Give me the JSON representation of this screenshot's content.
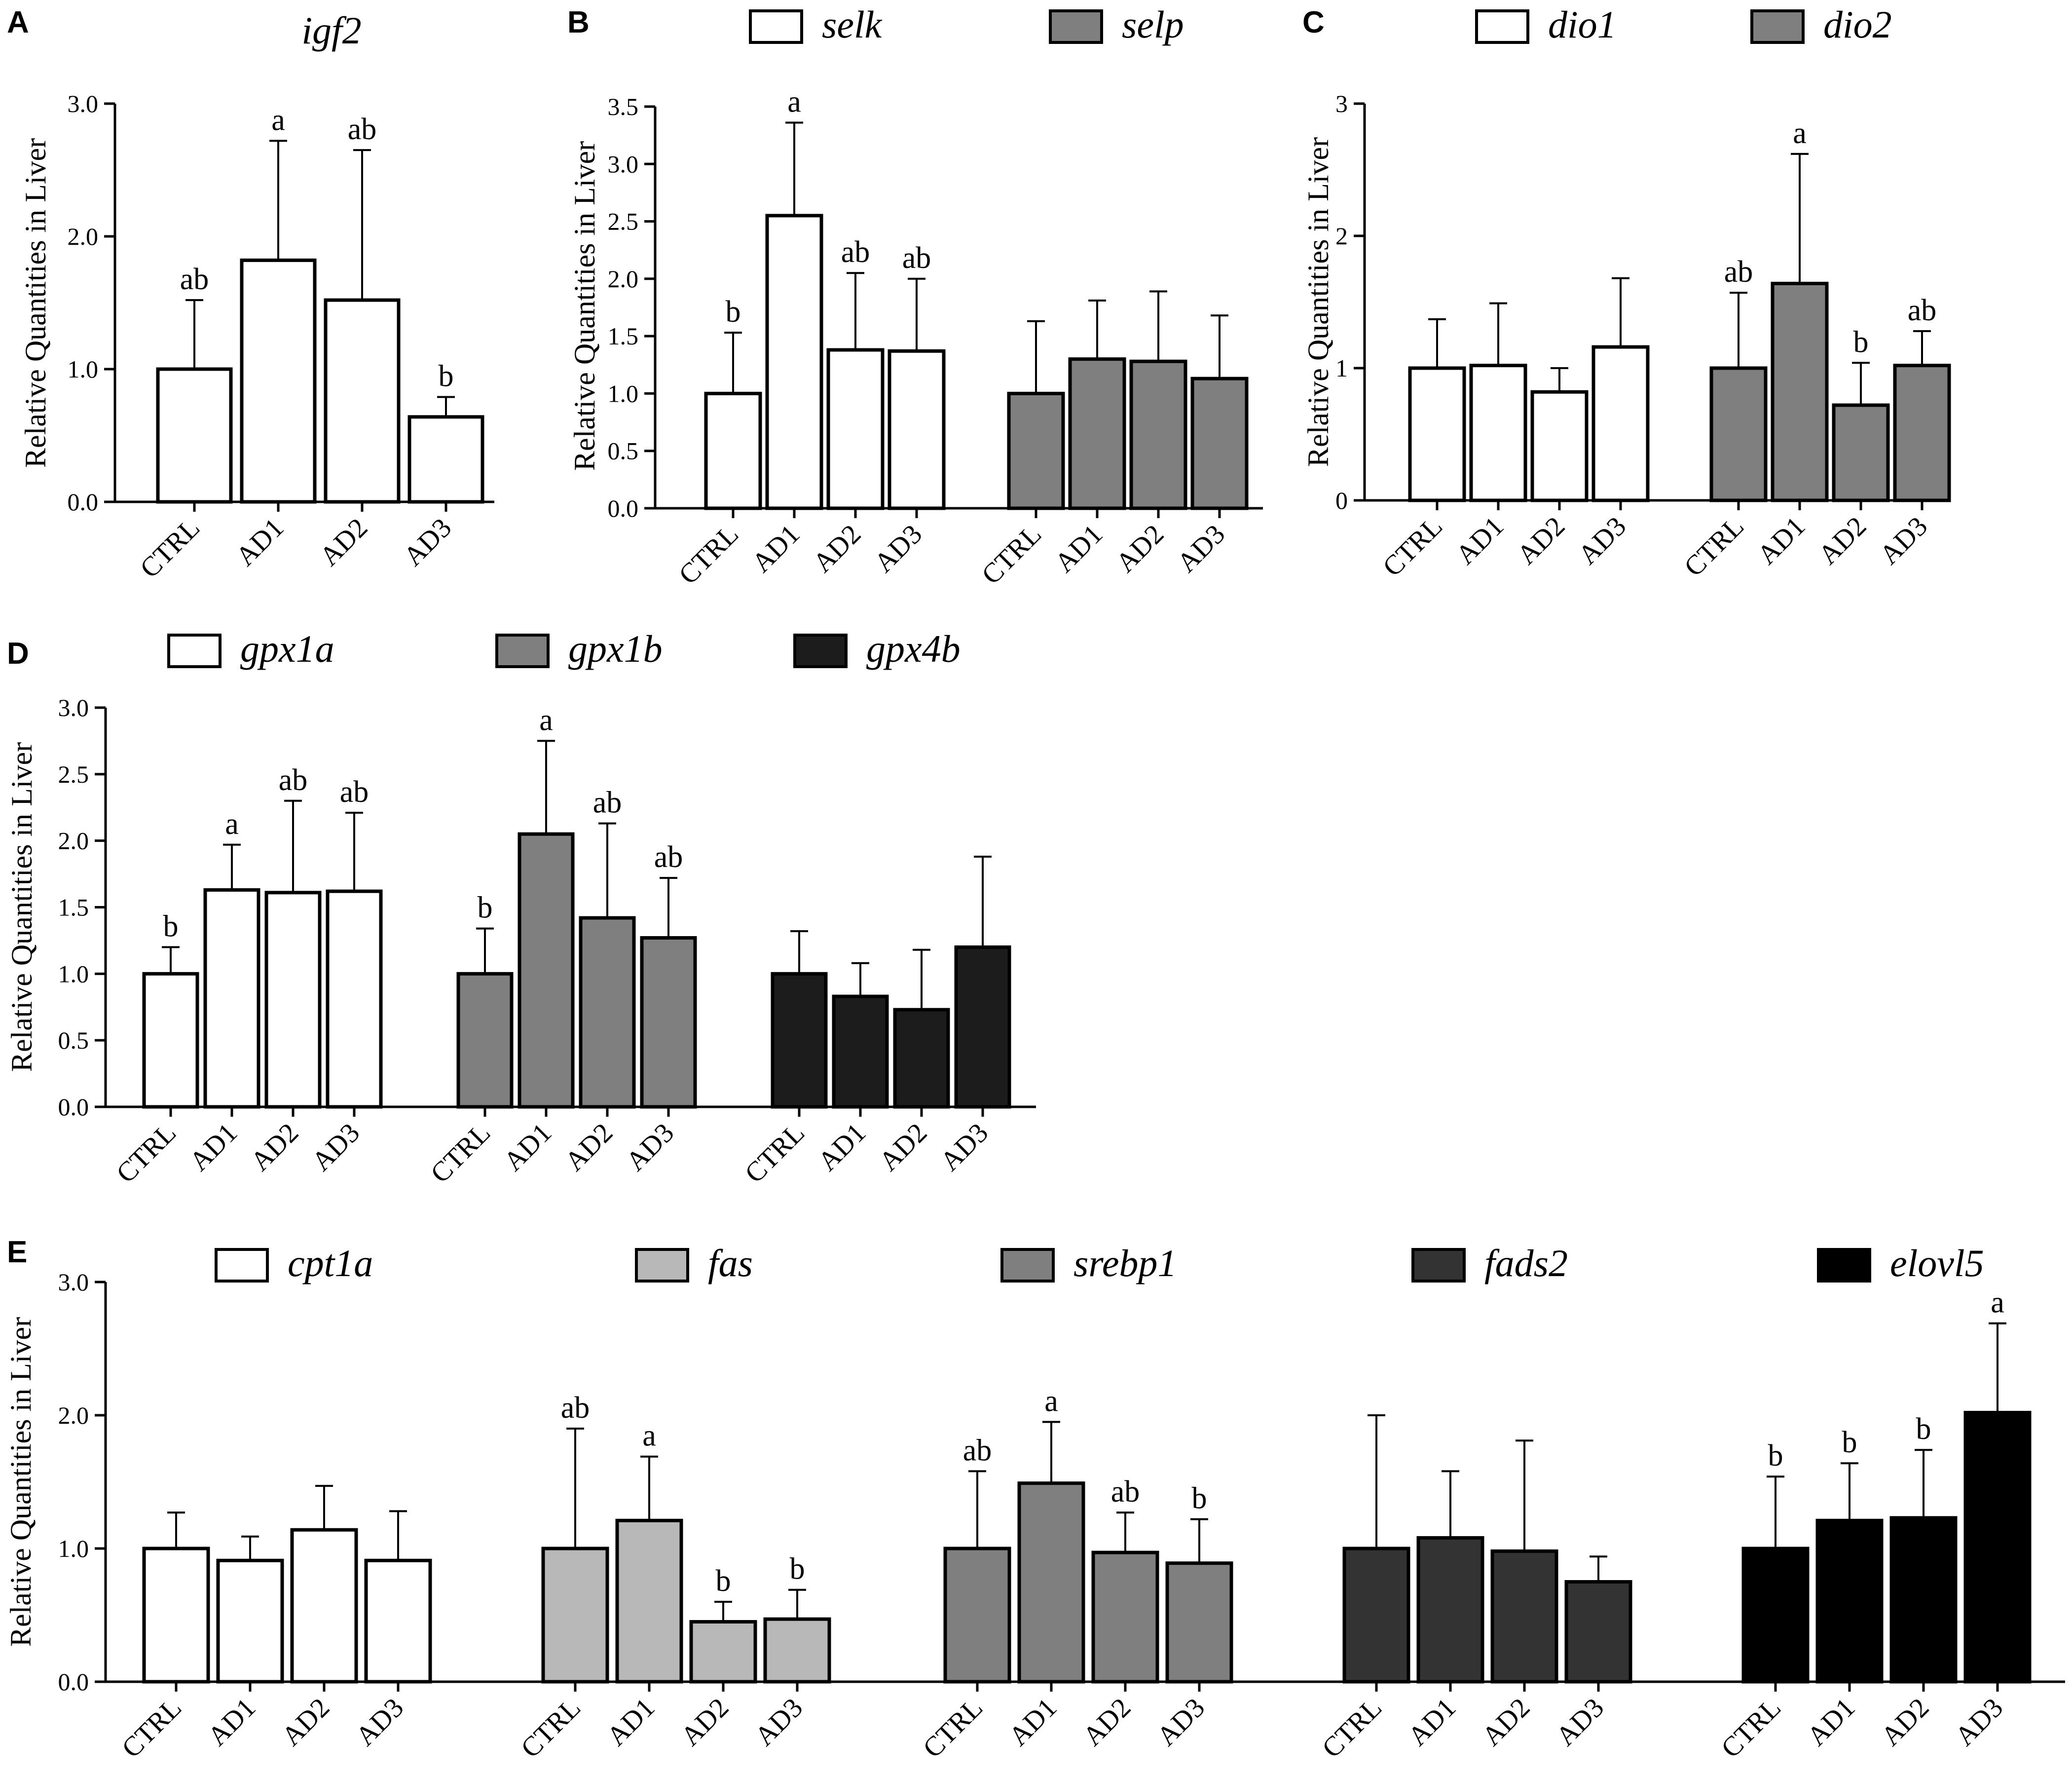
{
  "figure": {
    "y_axis_label": "Relative Quantities in Liver"
  },
  "colors": {
    "white": "#ffffff",
    "light_gray": "#b8b8b8",
    "mid_gray": "#7f7f7f",
    "dark_gray": "#333333",
    "near_black": "#1c1c1c",
    "black": "#000000"
  },
  "chart_data": [
    {
      "panel": "A",
      "type": "bar",
      "title": "igf2",
      "ylabel": "Relative Quantities in Liver",
      "ylim": [
        0,
        3
      ],
      "yticks": [
        "0.0",
        "1.0",
        "2.0",
        "3.0"
      ],
      "categories": [
        "CTRL",
        "AD1",
        "AD2",
        "AD3"
      ],
      "legend": [],
      "groups": [
        {
          "name": "igf2",
          "color": "#ffffff",
          "values": [
            1.0,
            1.82,
            1.52,
            0.64
          ],
          "errors": [
            0.52,
            0.9,
            1.13,
            0.15
          ],
          "labels": [
            "ab",
            "a",
            "ab",
            "b"
          ]
        }
      ]
    },
    {
      "panel": "B",
      "type": "bar",
      "title": "",
      "ylabel": "Relative Quantities in Liver",
      "ylim": [
        0,
        3.5
      ],
      "yticks": [
        "0.0",
        "0.5",
        "1.0",
        "1.5",
        "2.0",
        "2.5",
        "3.0",
        "3.5"
      ],
      "categories": [
        "CTRL",
        "AD1",
        "AD2",
        "AD3"
      ],
      "legend": [
        "selk",
        "selp"
      ],
      "groups": [
        {
          "name": "selk",
          "color": "#ffffff",
          "values": [
            1.0,
            2.55,
            1.38,
            1.37
          ],
          "errors": [
            0.53,
            0.81,
            0.67,
            0.63
          ],
          "labels": [
            "b",
            "a",
            "ab",
            "ab"
          ]
        },
        {
          "name": "selp",
          "color": "#7f7f7f",
          "values": [
            1.0,
            1.3,
            1.28,
            1.13
          ],
          "errors": [
            0.63,
            0.51,
            0.61,
            0.55
          ],
          "labels": [
            "",
            "",
            "",
            ""
          ]
        }
      ]
    },
    {
      "panel": "C",
      "type": "bar",
      "title": "",
      "ylabel": "Relative Quantities in Liver",
      "ylim": [
        0,
        3
      ],
      "yticks": [
        "0",
        "1",
        "2",
        "3"
      ],
      "categories": [
        "CTRL",
        "AD1",
        "AD2",
        "AD3"
      ],
      "legend": [
        "dio1",
        "dio2"
      ],
      "groups": [
        {
          "name": "dio1",
          "color": "#ffffff",
          "values": [
            1.0,
            1.02,
            0.82,
            1.16
          ],
          "errors": [
            0.37,
            0.47,
            0.18,
            0.52
          ],
          "labels": [
            "",
            "",
            "",
            ""
          ]
        },
        {
          "name": "dio2",
          "color": "#7f7f7f",
          "values": [
            1.0,
            1.64,
            0.72,
            1.02
          ],
          "errors": [
            0.57,
            0.98,
            0.32,
            0.26
          ],
          "labels": [
            "ab",
            "a",
            "b",
            "ab"
          ]
        }
      ]
    },
    {
      "panel": "D",
      "type": "bar",
      "title": "",
      "ylabel": "Relative Quantities in Liver",
      "ylim": [
        0,
        3
      ],
      "yticks": [
        "0.0",
        "0.5",
        "1.0",
        "1.5",
        "2.0",
        "2.5",
        "3.0"
      ],
      "categories": [
        "CTRL",
        "AD1",
        "AD2",
        "AD3"
      ],
      "legend": [
        "gpx1a",
        "gpx1b",
        "gpx4b"
      ],
      "groups": [
        {
          "name": "gpx1a",
          "color": "#ffffff",
          "values": [
            1.0,
            1.63,
            1.61,
            1.62
          ],
          "errors": [
            0.2,
            0.34,
            0.69,
            0.59
          ],
          "labels": [
            "b",
            "a",
            "ab",
            "ab"
          ]
        },
        {
          "name": "gpx1b",
          "color": "#7f7f7f",
          "values": [
            1.0,
            2.05,
            1.42,
            1.27
          ],
          "errors": [
            0.34,
            0.7,
            0.71,
            0.45
          ],
          "labels": [
            "b",
            "a",
            "ab",
            "ab"
          ]
        },
        {
          "name": "gpx4b",
          "color": "#1c1c1c",
          "values": [
            1.0,
            0.83,
            0.73,
            1.2
          ],
          "errors": [
            0.32,
            0.25,
            0.45,
            0.68
          ],
          "labels": [
            "",
            "",
            "",
            ""
          ]
        }
      ]
    },
    {
      "panel": "E",
      "type": "bar",
      "title": "",
      "ylabel": "Relative Quantities in Liver",
      "ylim": [
        0,
        3
      ],
      "yticks": [
        "0.0",
        "1.0",
        "2.0",
        "3.0"
      ],
      "categories": [
        "CTRL",
        "AD1",
        "AD2",
        "AD3"
      ],
      "legend": [
        "cpt1a",
        "fas",
        "srebp1",
        "fads2",
        "elovl5"
      ],
      "groups": [
        {
          "name": "cpt1a",
          "color": "#ffffff",
          "values": [
            1.0,
            0.91,
            1.14,
            0.91
          ],
          "errors": [
            0.27,
            0.18,
            0.33,
            0.37
          ],
          "labels": [
            "",
            "",
            "",
            ""
          ]
        },
        {
          "name": "fas",
          "color": "#b8b8b8",
          "values": [
            1.0,
            1.21,
            0.45,
            0.47
          ],
          "errors": [
            0.9,
            0.48,
            0.15,
            0.22
          ],
          "labels": [
            "ab",
            "a",
            "b",
            "b"
          ]
        },
        {
          "name": "srebp1",
          "color": "#7f7f7f",
          "values": [
            1.0,
            1.49,
            0.97,
            0.89
          ],
          "errors": [
            0.58,
            0.46,
            0.3,
            0.33
          ],
          "labels": [
            "ab",
            "a",
            "ab",
            "b"
          ]
        },
        {
          "name": "fads2",
          "color": "#333333",
          "values": [
            1.0,
            1.08,
            0.98,
            0.75
          ],
          "errors": [
            1.0,
            0.5,
            0.83,
            0.19
          ],
          "labels": [
            "",
            "",
            "",
            ""
          ]
        },
        {
          "name": "elovl5",
          "color": "#000000",
          "values": [
            1.0,
            1.21,
            1.23,
            2.02
          ],
          "errors": [
            0.54,
            0.43,
            0.51,
            0.67
          ],
          "labels": [
            "b",
            "b",
            "b",
            "a"
          ]
        }
      ]
    }
  ]
}
